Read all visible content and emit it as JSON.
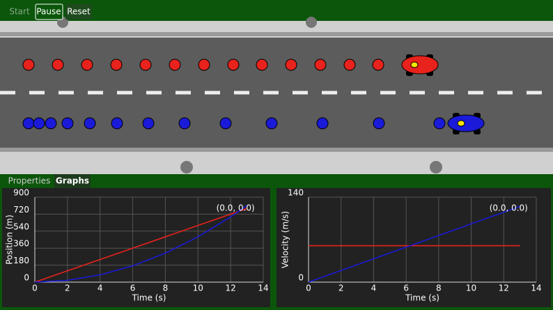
{
  "toolbar": {
    "buttons": [
      "Start",
      "Pause",
      "Reset"
    ]
  },
  "tabs": [
    "Properties",
    "Graphs"
  ],
  "chart_data": [
    {
      "type": "line",
      "x_label": "Time (s)",
      "y_label": "Position (m)",
      "annotation": "(0.0, 0.0)",
      "x": [
        0,
        2,
        4,
        6,
        8,
        10,
        12,
        13
      ],
      "series": [
        {
          "name": "Red car",
          "color": "#e8221c",
          "values": [
            0,
            120,
            240,
            360,
            480,
            600,
            720,
            780
          ]
        },
        {
          "name": "Blue car",
          "color": "#1a1ad8",
          "values": [
            0,
            19.2,
            76.8,
            172.8,
            307.2,
            480,
            691.2,
            811.2
          ]
        }
      ],
      "xlim": [
        0,
        14
      ],
      "xticks": [
        0,
        2,
        4,
        6,
        8,
        10,
        12,
        14
      ],
      "ylim": [
        0,
        900
      ],
      "yticks": [
        0,
        180,
        360,
        540,
        720,
        900
      ],
      "grid": true
    },
    {
      "type": "line",
      "x_label": "Time (s)",
      "y_label": "Velocity (m/s)",
      "annotation": "(0.0, 0.0)",
      "x": [
        0,
        2,
        4,
        6,
        8,
        10,
        12,
        13
      ],
      "series": [
        {
          "name": "Red car",
          "color": "#e8221c",
          "values": [
            60,
            60,
            60,
            60,
            60,
            60,
            60,
            60
          ]
        },
        {
          "name": "Blue car",
          "color": "#1a1ad8",
          "values": [
            0,
            19.2,
            38.4,
            57.6,
            76.8,
            96,
            115.2,
            124.8
          ]
        }
      ],
      "xlim": [
        0,
        14
      ],
      "xticks": [
        0,
        2,
        4,
        6,
        8,
        10,
        12,
        14
      ],
      "ylim": [
        0,
        140
      ],
      "yticks": [
        0,
        140
      ],
      "grid": true
    }
  ]
}
